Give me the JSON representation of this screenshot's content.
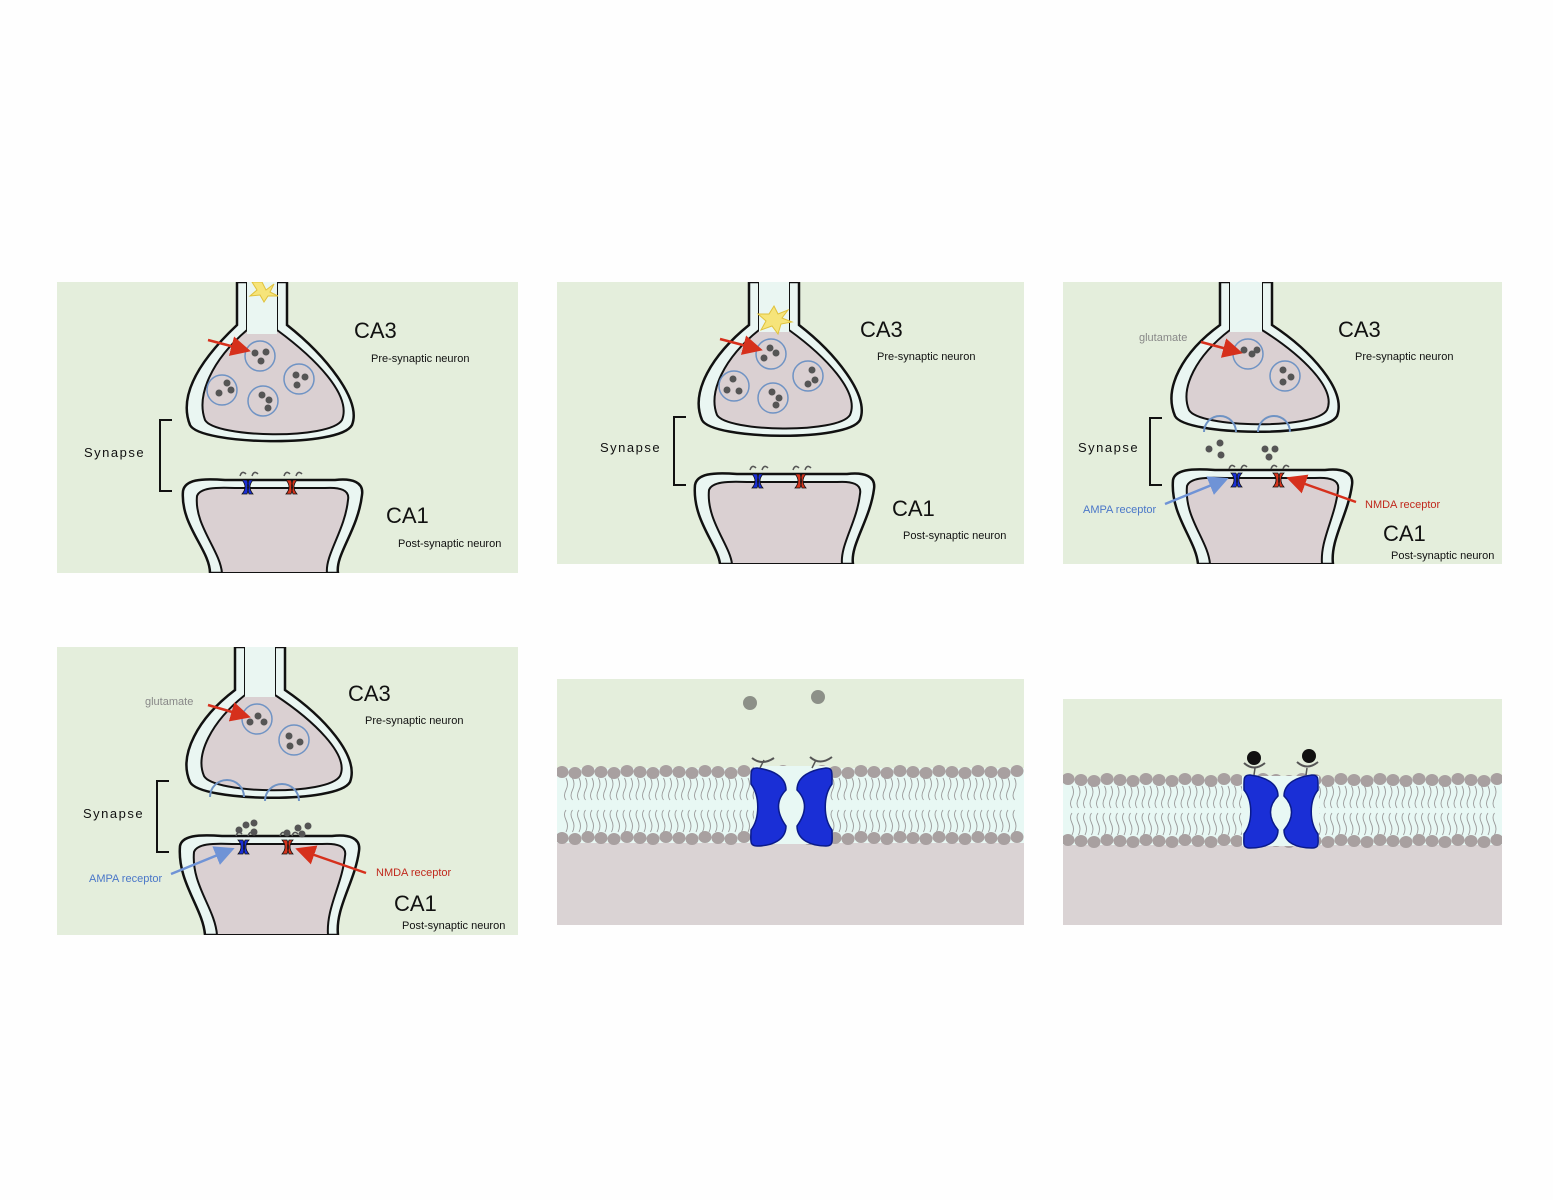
{
  "colors": {
    "panel_bg": "#e4eedc",
    "cell_body": "#dad0d2",
    "axon_fill": "#eaf6f2",
    "vesicle_stroke": "#6f93c4",
    "neurotransmitter": "#555555",
    "ampa": "#1a2fd6",
    "nmda": "#d6341c",
    "arrow_red": "#d6301c",
    "arrow_blue": "#6f93d6",
    "lipid_head": "#a8a0a0",
    "membrane_core": "#e8f8f4",
    "ion": "#111111"
  },
  "labels": {
    "pre_region": "CA3",
    "pre_sub": "Pre-synaptic neuron",
    "post_region": "CA1",
    "post_sub": "Post-synaptic neuron",
    "synapse": "Synapse",
    "glutamate": "glutamate",
    "ampa": "AMPA receptor",
    "nmda": "NMDA receptor"
  },
  "panels": [
    {
      "id": "panel-1",
      "step": "action potential arrives"
    },
    {
      "id": "panel-2",
      "step": "vesicles move to membrane"
    },
    {
      "id": "panel-3",
      "step": "glutamate release"
    },
    {
      "id": "panel-4",
      "step": "glutamate binds receptors"
    },
    {
      "id": "panel-5",
      "step": "receptor channel in membrane"
    },
    {
      "id": "panel-6",
      "step": "channel with bound ligands"
    }
  ]
}
